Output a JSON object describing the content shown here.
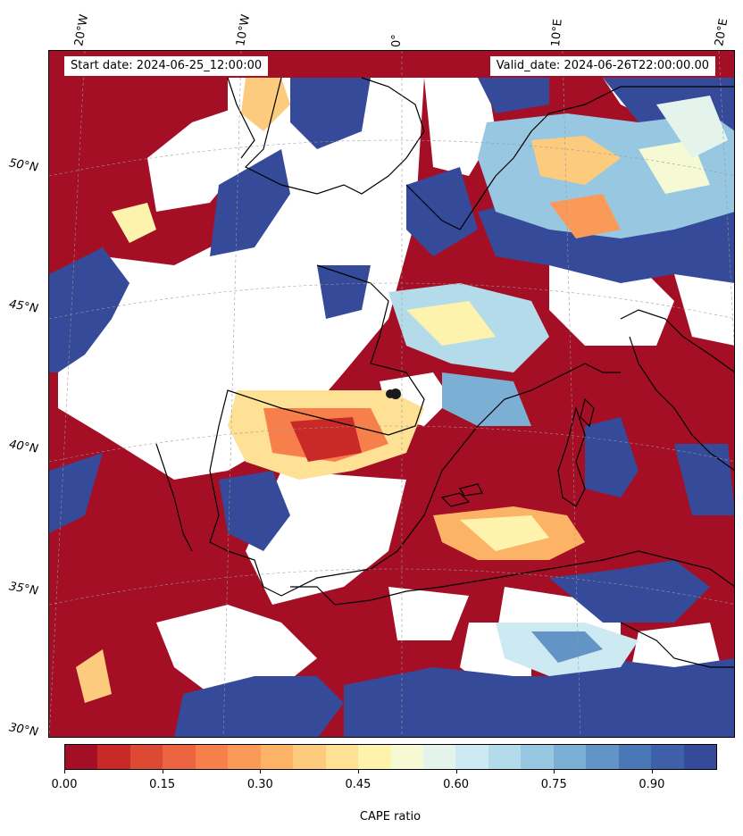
{
  "map": {
    "start_date": "Start date: 2024-06-25_12:00:00",
    "valid_date": "Valid_date: 2024-06-26T22:00:00.00",
    "lon_labels": [
      "20°W",
      "10°W",
      "0°",
      "10°E",
      "20°E"
    ],
    "lat_labels": [
      "50°N",
      "45°N",
      "40°N",
      "35°N",
      "30°N"
    ],
    "colors": {
      "ocean_low": "#a50f26",
      "land_high": "#364a9a",
      "missing": "#ffffff",
      "coast": "#000000",
      "marker": "#1a1a1a"
    }
  },
  "colorbar": {
    "title": "CAPE ratio",
    "ticks": [
      "0.00",
      "0.15",
      "0.30",
      "0.45",
      "0.60",
      "0.75",
      "0.90"
    ],
    "colors": [
      "#a50f26",
      "#c92a27",
      "#dd4a33",
      "#ec6442",
      "#f67f4b",
      "#fa9a58",
      "#fdb366",
      "#fdcb7d",
      "#fee195",
      "#fef3ad",
      "#f5fad5",
      "#e4f4ed",
      "#cde9f1",
      "#b4dbea",
      "#98c8e1",
      "#7cafd4",
      "#6394c6",
      "#4a78b6",
      "#3f60a8",
      "#364a9a"
    ]
  }
}
